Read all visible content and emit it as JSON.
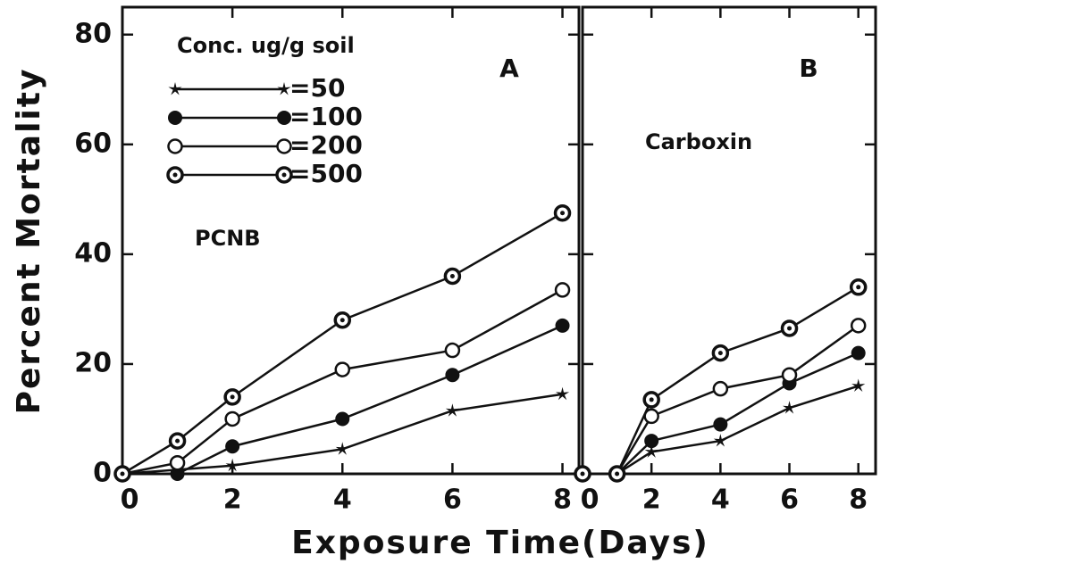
{
  "chart_data": [
    {
      "type": "line",
      "panel_label": "A",
      "annotation": "PCNB",
      "ylabel": "Percent Mortality",
      "xlabel": "Exposure Time(Days)",
      "legend_title": "Conc. ug/g soil",
      "xlim": [
        0,
        8.3
      ],
      "ylim": [
        0,
        85
      ],
      "xticks": [
        0,
        2,
        4,
        6,
        8
      ],
      "yticks": [
        0,
        20,
        40,
        60,
        80
      ],
      "series": [
        {
          "name": "=50",
          "marker": "star",
          "color": "#111",
          "x": [
            0,
            2,
            4,
            6,
            8
          ],
          "values": [
            0,
            1.5,
            4.5,
            11.5,
            14.5
          ]
        },
        {
          "name": "=100",
          "marker": "filled",
          "color": "#111",
          "x": [
            0,
            1,
            2,
            4,
            6,
            8
          ],
          "values": [
            0,
            0,
            5,
            10,
            18,
            27
          ]
        },
        {
          "name": "=200",
          "marker": "open",
          "color": "#111",
          "x": [
            0,
            1,
            2,
            4,
            6,
            8
          ],
          "values": [
            0,
            2,
            10,
            19,
            22.5,
            33.5
          ]
        },
        {
          "name": "=500",
          "marker": "double",
          "color": "#111",
          "x": [
            0,
            1,
            2,
            4,
            6,
            8
          ],
          "values": [
            0,
            6,
            14,
            28,
            36,
            47.5
          ]
        }
      ]
    },
    {
      "type": "line",
      "panel_label": "B",
      "annotation": "Carboxin",
      "xlim": [
        0,
        8.5
      ],
      "ylim": [
        0,
        85
      ],
      "xticks": [
        0,
        2,
        4,
        6,
        8
      ],
      "yticks": [
        0,
        20,
        40,
        60,
        80
      ],
      "series": [
        {
          "name": "=50",
          "marker": "star",
          "color": "#111",
          "x": [
            0,
            1,
            2,
            4,
            6,
            8
          ],
          "values": [
            0,
            0,
            4,
            6,
            12,
            16
          ]
        },
        {
          "name": "=100",
          "marker": "filled",
          "color": "#111",
          "x": [
            0,
            1,
            2,
            4,
            6,
            8
          ],
          "values": [
            0,
            0,
            6,
            9,
            16.5,
            22
          ]
        },
        {
          "name": "=200",
          "marker": "open",
          "color": "#111",
          "x": [
            0,
            1,
            2,
            4,
            6,
            8
          ],
          "values": [
            0,
            0,
            10.5,
            15.5,
            18,
            27
          ]
        },
        {
          "name": "=500",
          "marker": "double",
          "color": "#111",
          "x": [
            0,
            1,
            2,
            4,
            6,
            8
          ],
          "values": [
            0,
            0,
            13.5,
            22,
            26.5,
            34
          ]
        }
      ]
    }
  ]
}
